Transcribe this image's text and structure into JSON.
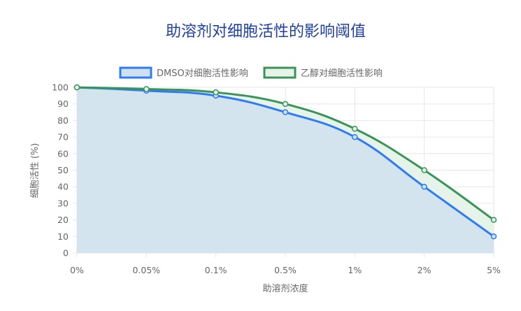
{
  "chart_data": {
    "type": "line",
    "title": "助溶剂对细胞活性的影响阈值",
    "xlabel": "助溶剂浓度",
    "ylabel": "细胞活性 (%)",
    "categories": [
      "0%",
      "0.05%",
      "0.1%",
      "0.5%",
      "1%",
      "2%",
      "5%"
    ],
    "ylim": [
      0,
      100
    ],
    "yticks": [
      0,
      10,
      20,
      30,
      40,
      50,
      60,
      70,
      80,
      90,
      100
    ],
    "grid": true,
    "legend_position": "top",
    "series": [
      {
        "name": "DMSO对细胞活性影响",
        "values": [
          100,
          98,
          95,
          85,
          70,
          40,
          10
        ],
        "color": "#2f7bf5",
        "fill": "#cfe0ee"
      },
      {
        "name": "乙醇对细胞活性影响",
        "values": [
          100,
          99,
          97,
          90,
          75,
          50,
          20
        ],
        "color": "#3a9459",
        "fill": "#e6f3e8"
      }
    ]
  }
}
